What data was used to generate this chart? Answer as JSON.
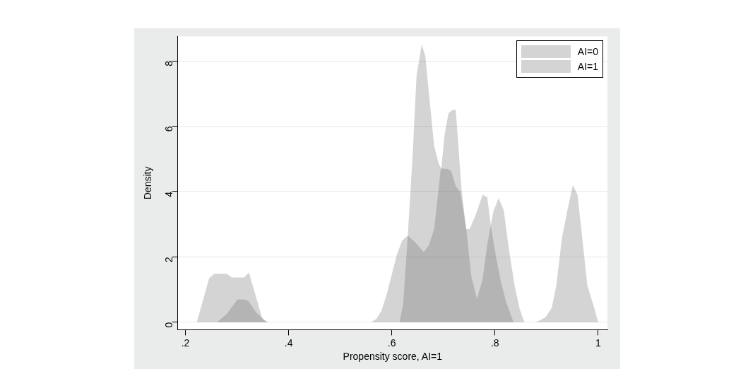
{
  "chart_data": {
    "type": "area",
    "xlabel": "Propensity score, AI=1",
    "ylabel": "Density",
    "xlim": [
      0.185,
      1.018
    ],
    "ylim": [
      -0.23,
      8.75
    ],
    "xticks": [
      {
        "value": 0.2,
        "label": ".2"
      },
      {
        "value": 0.4,
        "label": ".4"
      },
      {
        "value": 0.6,
        "label": ".6"
      },
      {
        "value": 0.8,
        "label": ".8"
      },
      {
        "value": 1,
        "label": "1"
      }
    ],
    "yticks": [
      0,
      2,
      4,
      6,
      8
    ],
    "grid": "y",
    "legend": "top right",
    "series": [
      {
        "name": "AI=0",
        "color": "#d4d4d4",
        "x": [
          0.222,
          0.246,
          0.256,
          0.28,
          0.29,
          0.314,
          0.323,
          0.34,
          0.349,
          0.358,
          0.6,
          0.615,
          0.622,
          0.631,
          0.64,
          0.648,
          0.658,
          0.665,
          0.672,
          0.682,
          0.691,
          0.696,
          0.702,
          0.71,
          0.718,
          0.724,
          0.735,
          0.744,
          0.751,
          0.763,
          0.776,
          0.785,
          0.792,
          0.802,
          0.812,
          0.822,
          0.836
        ],
        "values": [
          0,
          1.35,
          1.48,
          1.48,
          1.37,
          1.37,
          1.52,
          0.6,
          0.1,
          0,
          0,
          0,
          0.55,
          2.65,
          5.0,
          7.55,
          8.5,
          8.14,
          7.0,
          5.4,
          4.85,
          4.7,
          5.7,
          6.4,
          6.5,
          6.5,
          4.1,
          2.85,
          2.85,
          3.3,
          3.9,
          3.83,
          2.95,
          2.0,
          1.2,
          0.6,
          0
        ]
      },
      {
        "name": "AI=1",
        "color": "#d4d4d4",
        "x": [
          0.261,
          0.28,
          0.301,
          0.314,
          0.322,
          0.337,
          0.355,
          0.36,
          0.56,
          0.57,
          0.58,
          0.59,
          0.61,
          0.62,
          0.631,
          0.645,
          0.662,
          0.672,
          0.682,
          0.695,
          0.708,
          0.715,
          0.724,
          0.733,
          0.744,
          0.754,
          0.765,
          0.776,
          0.785,
          0.797,
          0.807,
          0.817,
          0.827,
          0.838,
          0.848,
          0.857,
          0.88,
          0.898,
          0.91,
          0.919,
          0.93,
          0.94,
          0.951,
          0.96,
          0.967,
          0.979,
          0.993,
          1.0
        ],
        "values": [
          0,
          0.25,
          0.7,
          0.7,
          0.65,
          0.3,
          0.05,
          0,
          0,
          0.1,
          0.35,
          0.85,
          2.08,
          2.5,
          2.65,
          2.45,
          2.15,
          2.36,
          2.85,
          4.7,
          4.69,
          4.63,
          4.16,
          3.98,
          2.9,
          1.42,
          0.71,
          1.31,
          2.37,
          3.4,
          3.8,
          3.43,
          2.23,
          1.13,
          0.4,
          0,
          0,
          0.15,
          0.44,
          1.13,
          2.6,
          3.4,
          4.2,
          3.9,
          2.9,
          1.13,
          0.4,
          0
        ]
      }
    ]
  }
}
